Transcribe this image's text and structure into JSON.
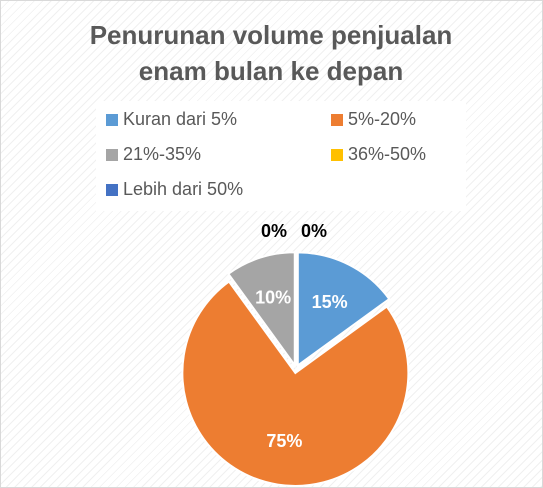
{
  "chart_data": {
    "type": "pie",
    "title": "Penurunan volume penjualan enam bulan ke depan",
    "categories": [
      "Kuran dari 5%",
      "5%-20%",
      "21%-35%",
      "36%-50%",
      "Lebih dari 50%"
    ],
    "values": [
      15,
      75,
      10,
      0,
      0
    ],
    "value_labels": [
      "15%",
      "75%",
      "10%",
      "0%",
      "0%"
    ],
    "colors": [
      "#5b9bd5",
      "#ed7d31",
      "#a5a5a5",
      "#ffc000",
      "#4472c4"
    ],
    "legend": "top"
  }
}
